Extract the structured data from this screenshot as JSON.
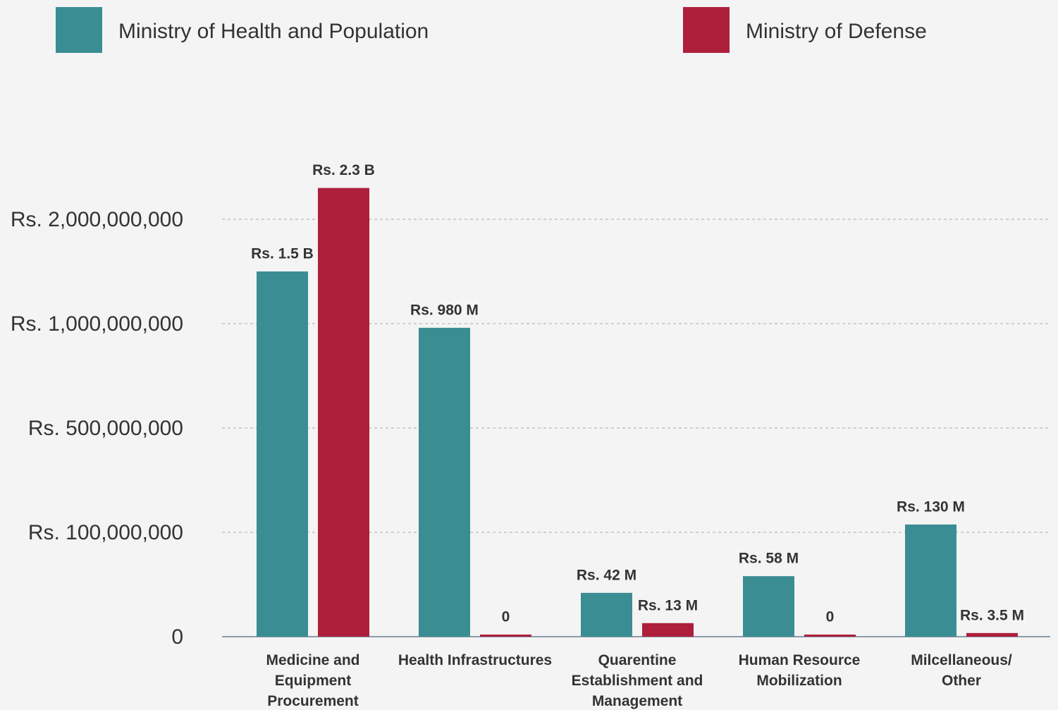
{
  "chart_data": {
    "type": "bar",
    "categories": [
      "Medicine and Equipment Procurement",
      "Health Infrastructures",
      "Quarentine Establishment and Management",
      "Human Resource Mobilization",
      "Milcellaneous/ Other"
    ],
    "series": [
      {
        "name": "Ministry of Health and Population",
        "color": "#3b8d94",
        "values": [
          1500000000,
          980000000,
          42000000,
          58000000,
          130000000
        ],
        "value_labels": [
          "Rs. 1.5 B",
          "Rs. 980 M",
          "Rs. 42 M",
          "Rs. 58 M",
          "Rs. 130 M"
        ]
      },
      {
        "name": "Ministry of Defense",
        "color": "#ae1f3c",
        "values": [
          2300000000,
          0,
          13000000,
          0,
          3500000
        ],
        "value_labels": [
          "Rs. 2.3 B",
          "0",
          "Rs. 13 M",
          "0",
          "Rs. 3.5 M"
        ]
      }
    ],
    "yscale": "piecewise",
    "yticks": [
      0,
      {
        "value": 100000000,
        "label": "Rs. 100,000,000"
      },
      {
        "value": 500000000,
        "label": "Rs. 500,000,000"
      },
      {
        "value": 1000000000,
        "label": "Rs. 1,000,000,000"
      },
      {
        "value": 2000000000,
        "label": "Rs. 2,000,000,000"
      }
    ],
    "grid": true
  }
}
